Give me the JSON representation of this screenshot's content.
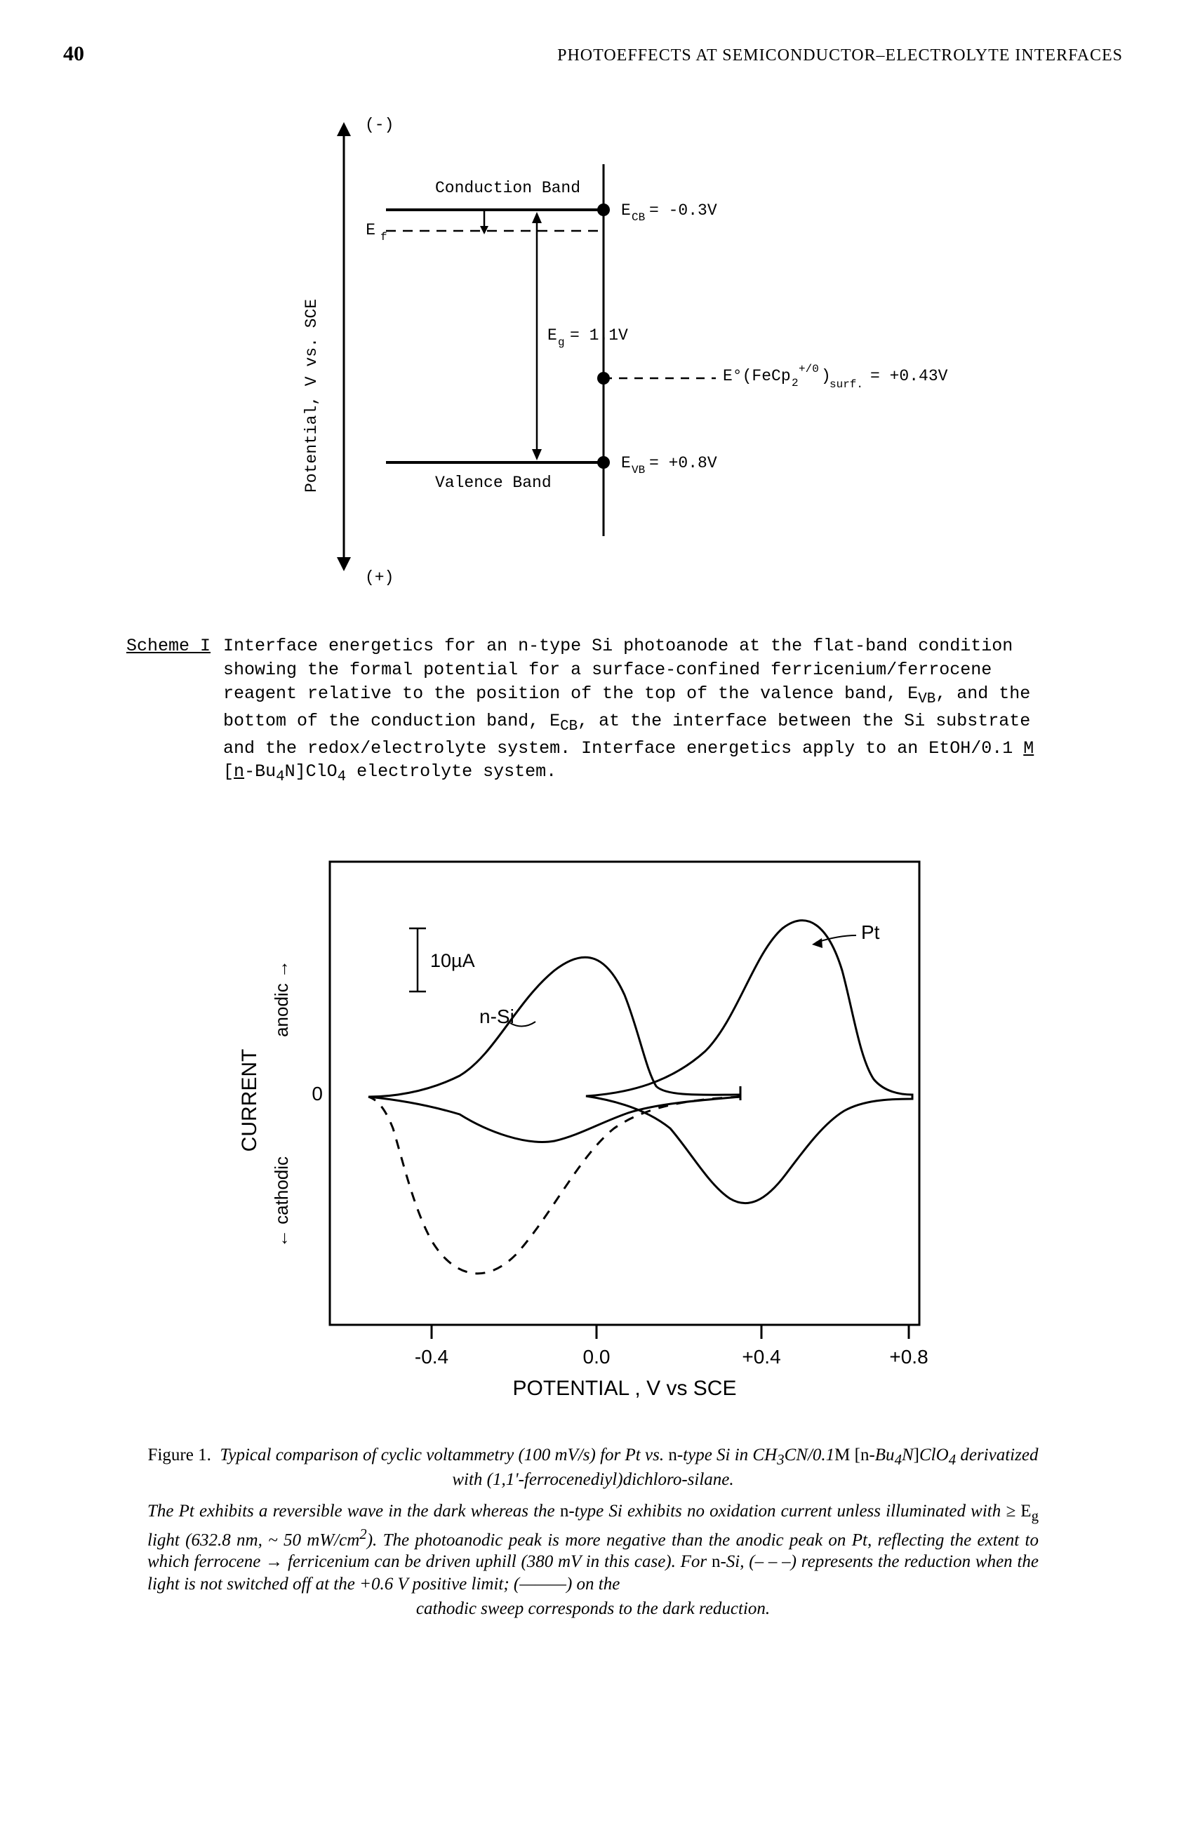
{
  "page": {
    "number": "40",
    "running_head": "PHOTOEFFECTS AT SEMICONDUCTOR–ELECTROLYTE INTERFACES"
  },
  "scheme": {
    "label": "Scheme I",
    "text_html": "Interface energetics for an n-type Si photoanode at the flat-band condition showing the formal potential for a surface-confined ferricenium/ferrocene reagent relative to the position of the top of the valence band, E<sub>VB</sub>, and the bottom of the conduction band, E<sub>CB</sub>, at the interface between the Si substrate and the redox/electrolyte system. Interface energetics apply to an EtOH/0.1 <u>M</u> [<u>n</u>-Bu<sub>4</sub>N]ClO<sub>4</sub> electrolyte system.",
    "diagram": {
      "axis_label": "Potential, V vs. SCE",
      "top_sign": "(-)",
      "bottom_sign": "(+)",
      "conduction_label": "Conduction Band",
      "valence_label": "Valence Band",
      "ef_label": "E_f",
      "eg_label": "E_g = 1.1V",
      "ecb_label": "E_CB = -0.3V",
      "evb_label": "E_VB = +0.8V",
      "redox_label": "E°(FeCp₂⁺/⁰)_surf. = +0.43V",
      "colors": {
        "line": "#000000",
        "bg": "#ffffff"
      }
    }
  },
  "cv_chart": {
    "type": "line",
    "x_label": "POTENTIAL , V vs SCE",
    "y_label_top": "anodic →",
    "y_label_bottom": "← cathodic",
    "y_label_main": "CURRENT",
    "x_ticks": [
      "-0.4",
      "0.0",
      "+0.4",
      "+0.8"
    ],
    "zero_tick": "0",
    "scale_bar": "10µA",
    "series_nSi_label": "n-Si",
    "series_Pt_label": "Pt",
    "colors": {
      "axis": "#000000",
      "nSi": "#000000",
      "Pt": "#000000",
      "bg": "#ffffff"
    }
  },
  "figure1": {
    "title_html": "<span class='upright'>Figure 1.</span>&nbsp;&nbsp;Typical comparison of cyclic voltammetry (100 mV/s) for Pt vs. <span class='upright'>n</span>-type Si in CH<sub>3</sub>CN/0.1<span class='upright'>M</span> <span class='upright'>[n-</span>Bu<sub>4</sub>N<span class='upright'>]</span>ClO<sub>4</sub> derivatized with (1,1'-ferrocenediyl)dichloro-silane.",
    "body_html": "The Pt exhibits a reversible wave in the dark whereas the <span class='upright'>n-</span>type Si exhibits no oxidation current unless illuminated with ≥ <span class='upright'>E<sub>g</sub></span> light (632.8 nm, ~ 50 mW/cm<sup>2</sup>). The photoanodic peak is more negative than the anodic peak on Pt, reflecting the extent to which ferrocene → ferricenium can be driven uphill (380 mV in this case). For <span class='upright'>n-</span>Si, (– – –) represents the reduction when the light is not switched off at the +0.6 V positive limit; (———) on the",
    "body_last_html": "cathodic sweep corresponds to the dark reduction."
  }
}
